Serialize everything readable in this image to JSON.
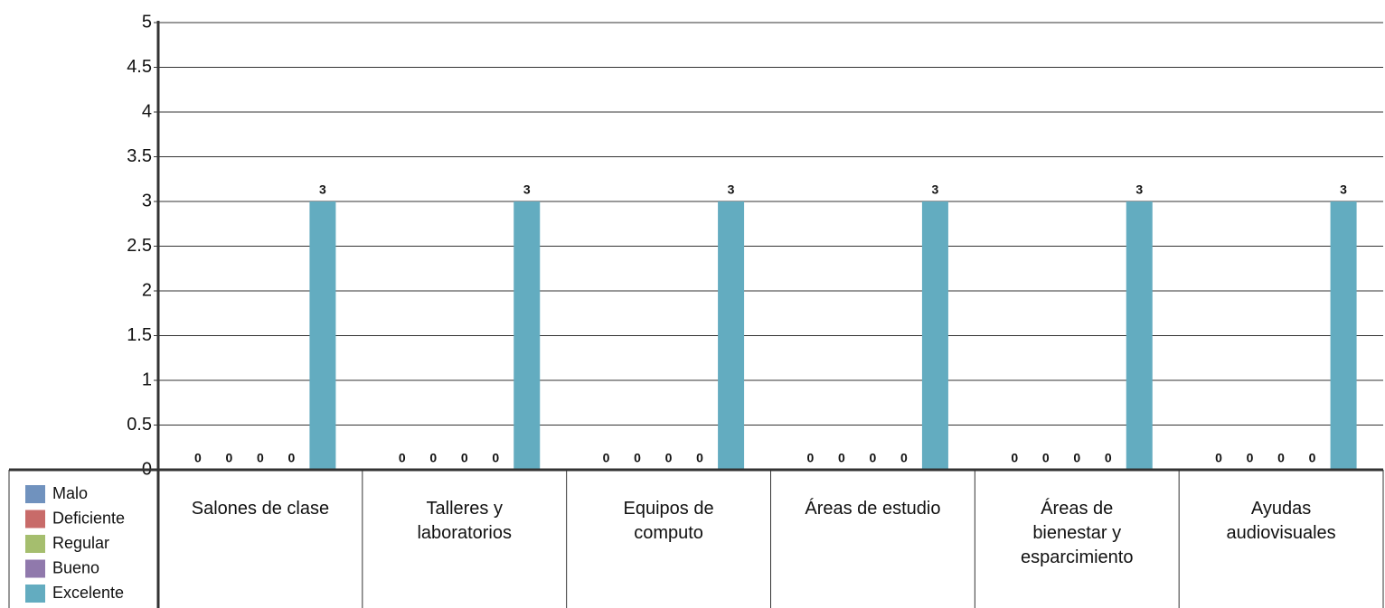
{
  "chart_data": {
    "type": "bar",
    "categories": [
      "Salones de clase",
      "Talleres y\nlaboratorios",
      "Equipos de\ncomputo",
      "Áreas de estudio",
      "Áreas de\nbienestar y\nesparcimiento",
      "Ayudas\naudiovisuales"
    ],
    "series": [
      {
        "name": "Malo",
        "color": "#7092be",
        "values": [
          0,
          0,
          0,
          0,
          0,
          0
        ]
      },
      {
        "name": "Deficiente",
        "color": "#c86b69",
        "values": [
          0,
          0,
          0,
          0,
          0,
          0
        ]
      },
      {
        "name": "Regular",
        "color": "#a5be6e",
        "values": [
          0,
          0,
          0,
          0,
          0,
          0
        ]
      },
      {
        "name": "Bueno",
        "color": "#9079ac",
        "values": [
          0,
          0,
          0,
          0,
          0,
          0
        ]
      },
      {
        "name": "Excelente",
        "color": "#63acc0",
        "values": [
          3,
          3,
          3,
          3,
          3,
          3
        ]
      }
    ],
    "ylim": [
      0,
      5
    ],
    "yticks": [
      0,
      0.5,
      1,
      1.5,
      2,
      2.5,
      3,
      3.5,
      4,
      4.5,
      5
    ],
    "grid": true
  }
}
